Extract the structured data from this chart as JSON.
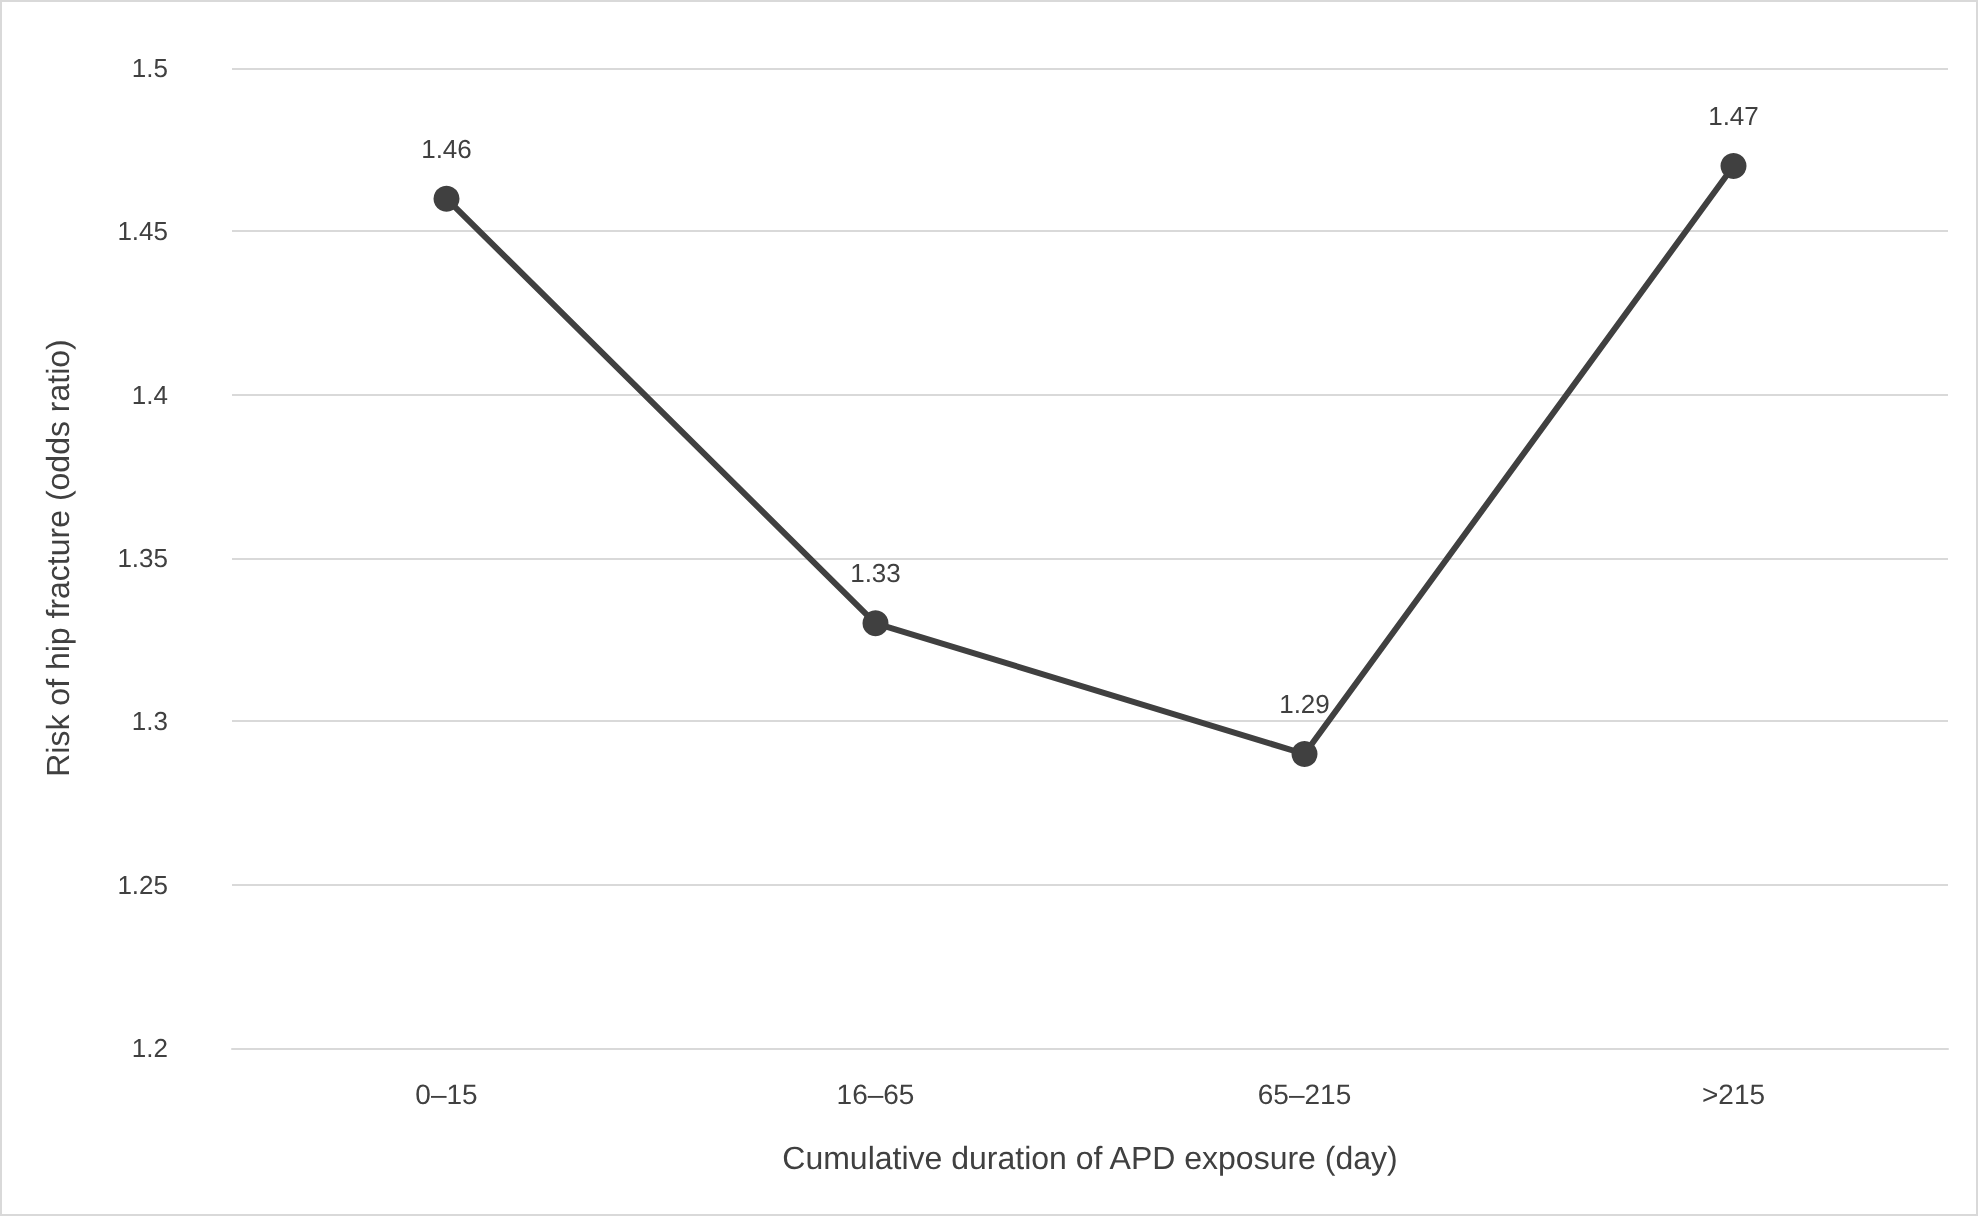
{
  "chart_data": {
    "type": "line",
    "xlabel": "Cumulative duration of APD exposure (day)",
    "ylabel": "Risk of hip fracture (odds ratio)",
    "categories": [
      "0–15",
      "16–65",
      "65–215",
      ">215"
    ],
    "series": [
      {
        "color": "#404040",
        "values": [
          1.46,
          1.33,
          1.29,
          1.47
        ]
      }
    ],
    "ylim": [
      1.2,
      1.5
    ],
    "yticks": [
      1.2,
      1.25,
      1.3,
      1.35,
      1.4,
      1.45,
      1.5
    ],
    "grid": "y",
    "marker": "circle",
    "line_style": "solid",
    "data_labels": true
  }
}
